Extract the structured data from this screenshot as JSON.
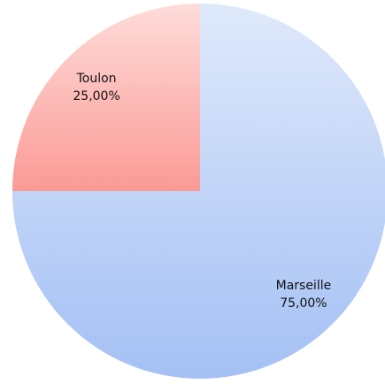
{
  "chart_data": {
    "type": "pie",
    "categories": [
      "Marseille",
      "Toulon"
    ],
    "values": [
      75,
      25
    ],
    "value_labels": [
      "75,00%",
      "25,00%"
    ],
    "colors": [
      "#a4c0f4",
      "#fb9a95"
    ]
  }
}
